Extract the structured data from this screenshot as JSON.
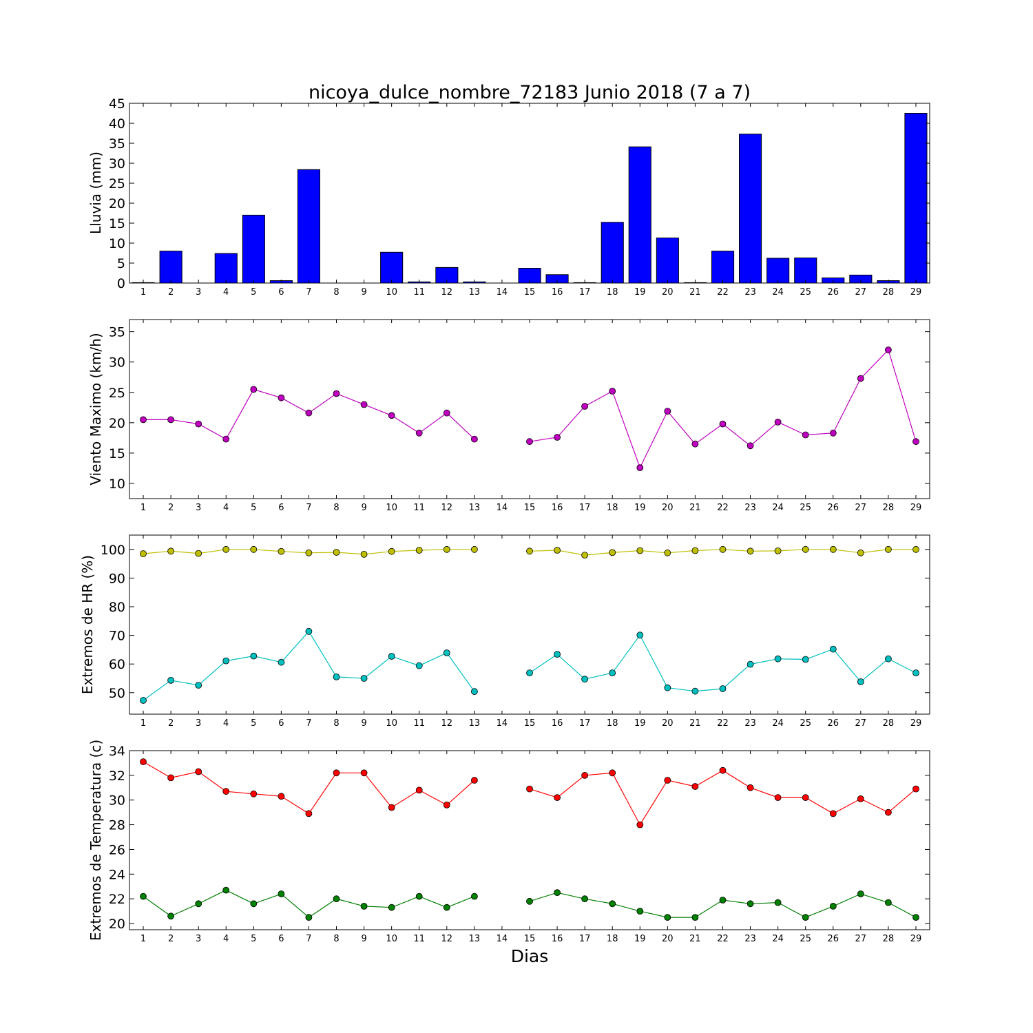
{
  "chart_data": [
    {
      "type": "bar",
      "title": "nicoya_dulce_nombre_72183 Junio 2018  (7 a 7)",
      "xlabel": "",
      "ylabel": "Lluvia (mm)",
      "ylim": [
        0,
        45
      ],
      "yticks": [
        0,
        5,
        10,
        15,
        20,
        25,
        30,
        35,
        40,
        45
      ],
      "categories": [
        1,
        2,
        3,
        4,
        5,
        6,
        7,
        8,
        9,
        10,
        11,
        12,
        13,
        14,
        15,
        16,
        17,
        18,
        19,
        20,
        21,
        22,
        23,
        24,
        25,
        26,
        27,
        28,
        29
      ],
      "series": [
        {
          "color": "#0000ff",
          "values": [
            0.1,
            8.0,
            0.0,
            7.4,
            17.0,
            0.6,
            28.4,
            0.0,
            0.0,
            7.7,
            0.3,
            3.9,
            0.3,
            null,
            3.7,
            2.1,
            0.1,
            15.2,
            34.1,
            11.3,
            0.1,
            8.0,
            37.3,
            6.2,
            6.3,
            1.3,
            2.0,
            0.6,
            42.5
          ]
        }
      ],
      "grid": false
    },
    {
      "type": "line",
      "xlabel": "",
      "ylabel": "Viento Maximo (km/h)",
      "ylim": [
        7.5,
        37
      ],
      "yticks": [
        10,
        15,
        20,
        25,
        30,
        35
      ],
      "categories": [
        1,
        2,
        3,
        4,
        5,
        6,
        7,
        8,
        9,
        10,
        11,
        12,
        13,
        14,
        15,
        16,
        17,
        18,
        19,
        20,
        21,
        22,
        23,
        24,
        25,
        26,
        27,
        28,
        29
      ],
      "series": [
        {
          "color": "#bf00bf",
          "values": [
            20.5,
            20.5,
            19.8,
            17.3,
            25.5,
            24.1,
            21.6,
            24.8,
            23.0,
            21.2,
            18.3,
            21.6,
            17.3,
            null,
            16.9,
            17.6,
            22.7,
            25.2,
            12.6,
            21.9,
            16.5,
            19.8,
            16.2,
            20.1,
            18.0,
            18.3,
            27.3,
            32.0,
            16.9
          ]
        }
      ],
      "grid": false
    },
    {
      "type": "line",
      "xlabel": "",
      "ylabel": "Extremos de HR (%)",
      "ylim": [
        42.5,
        105
      ],
      "yticks": [
        50,
        60,
        70,
        80,
        90,
        100
      ],
      "categories": [
        1,
        2,
        3,
        4,
        5,
        6,
        7,
        8,
        9,
        10,
        11,
        12,
        13,
        14,
        15,
        16,
        17,
        18,
        19,
        20,
        21,
        22,
        23,
        24,
        25,
        26,
        27,
        28,
        29
      ],
      "series": [
        {
          "color": "#bfbf00",
          "values": [
            98.5,
            99.4,
            98.6,
            100,
            100,
            99.3,
            98.8,
            99.0,
            98.3,
            99.3,
            99.7,
            100,
            100,
            null,
            99.4,
            99.7,
            98.0,
            98.9,
            99.6,
            98.8,
            99.6,
            100,
            99.4,
            99.5,
            100,
            100,
            98.8,
            100,
            100
          ]
        },
        {
          "color": "#00bfbf",
          "values": [
            47.3,
            54.3,
            52.6,
            61.1,
            62.8,
            60.6,
            71.4,
            55.5,
            55.0,
            62.7,
            59.4,
            63.9,
            50.4,
            null,
            56.9,
            63.4,
            54.7,
            56.9,
            70.1,
            51.7,
            50.5,
            51.4,
            59.9,
            61.8,
            61.6,
            65.2,
            53.8,
            61.8,
            56.9
          ]
        }
      ],
      "grid": false
    },
    {
      "type": "line",
      "xlabel": "Dias",
      "ylabel": "Extremos de Temperatura (c)",
      "ylim": [
        19.5,
        34
      ],
      "yticks": [
        20,
        22,
        24,
        26,
        28,
        30,
        32,
        34
      ],
      "categories": [
        1,
        2,
        3,
        4,
        5,
        6,
        7,
        8,
        9,
        10,
        11,
        12,
        13,
        14,
        15,
        16,
        17,
        18,
        19,
        20,
        21,
        22,
        23,
        24,
        25,
        26,
        27,
        28,
        29
      ],
      "series": [
        {
          "color": "#ff0000",
          "values": [
            33.1,
            31.8,
            32.3,
            30.7,
            30.5,
            30.3,
            28.9,
            32.2,
            32.2,
            29.4,
            30.8,
            29.6,
            31.6,
            null,
            30.9,
            30.2,
            32.0,
            32.2,
            28.0,
            31.6,
            31.1,
            32.4,
            31.0,
            30.2,
            30.2,
            28.9,
            30.1,
            29.0,
            30.9
          ]
        },
        {
          "color": "#007f00",
          "values": [
            22.2,
            20.6,
            21.6,
            22.7,
            21.6,
            22.4,
            20.5,
            22.0,
            21.4,
            21.3,
            22.2,
            21.3,
            22.2,
            null,
            21.8,
            22.5,
            22.0,
            21.6,
            21.0,
            20.5,
            20.5,
            21.9,
            21.6,
            21.7,
            20.5,
            21.4,
            22.4,
            21.7,
            20.5
          ]
        }
      ],
      "grid": false
    }
  ]
}
